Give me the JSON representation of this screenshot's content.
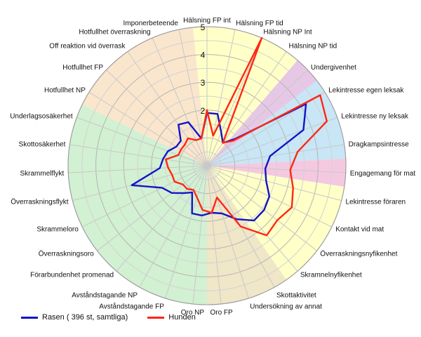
{
  "chart_data": {
    "type": "radar",
    "title": "",
    "rmax": 5,
    "ticks": [
      1,
      2,
      3,
      4,
      5
    ],
    "tick_labels": [
      "",
      "2",
      "3",
      "4",
      "5"
    ],
    "axes": [
      "Hälsning FP int",
      "Hälsning FP tid",
      "Hälsning NP Int",
      "Hälsning NP tid",
      "Undergivenhet",
      "Lekintresse egen leksak",
      "Lekintresse ny leksak",
      "Dragkampsintresse",
      "Engagemang för mat",
      "Lekintresse föraren",
      "Kontakt vid mat",
      "Överraskningsnyfikenhet",
      "Skramnelnyfikenhet",
      "Skottaktivitet",
      "Undersökning av annat",
      "Oro FP",
      "Oro NP",
      "Avståndstagande FP",
      "Avståndstagande NP",
      "Förarbundenhet promenad",
      "Överraskningsoro",
      "Skrammeloro",
      "Överraskningsflykt",
      "Skrammelflykt",
      "Skottosäkerhet",
      "Underlagsosäkerhet",
      "Hotfullhet NP",
      "Hotfullhet FP",
      "Off reaktion vid överrask",
      "Hotfullhet överraskning",
      "Imponerbeteende"
    ],
    "sectors": [
      {
        "from": 0,
        "to": 3,
        "color": "#ffffc8"
      },
      {
        "from": 4,
        "to": 4,
        "color": "#e6c8e6"
      },
      {
        "from": 5,
        "to": 7,
        "color": "#c8e6f5"
      },
      {
        "from": 8,
        "to": 8,
        "color": "#f5c8e1"
      },
      {
        "from": 9,
        "to": 12,
        "color": "#ffffc8"
      },
      {
        "from": 13,
        "to": 15,
        "color": "#f0e6c8"
      },
      {
        "from": 16,
        "to": 25,
        "color": "#d2f0d2"
      },
      {
        "from": 26,
        "to": 30,
        "color": "#fae6cd"
      }
    ],
    "series": [
      {
        "name": "Rasen ( 396 st, samtliga)",
        "color": "#1414c8",
        "values": [
          1.9,
          1.9,
          1.3,
          1.0,
          1.4,
          4.2,
          3.7,
          2.3,
          2.1,
          2.2,
          2.5,
          2.6,
          2.6,
          2.2,
          1.8,
          1.7,
          1.8,
          1.8,
          1.1,
          1.3,
          1.6,
          1.8,
          2.8,
          1.7,
          1.6,
          1.5,
          1.3,
          1.3,
          1.8,
          1.7,
          1.0
        ]
      },
      {
        "name": "Hunden",
        "color": "#ff2814",
        "values": [
          2.0,
          1.1,
          5.0,
          1.0,
          1.3,
          4.8,
          4.6,
          3.3,
          3.0,
          3.2,
          3.4,
          3.2,
          3.3,
          2.5,
          1.2,
          1.7,
          1.6,
          1.2,
          1.0,
          1.1,
          1.1,
          1.3,
          1.3,
          1.4,
          1.5,
          1.1,
          1.1,
          1.1,
          1.2,
          1.0,
          1.0
        ]
      }
    ]
  }
}
